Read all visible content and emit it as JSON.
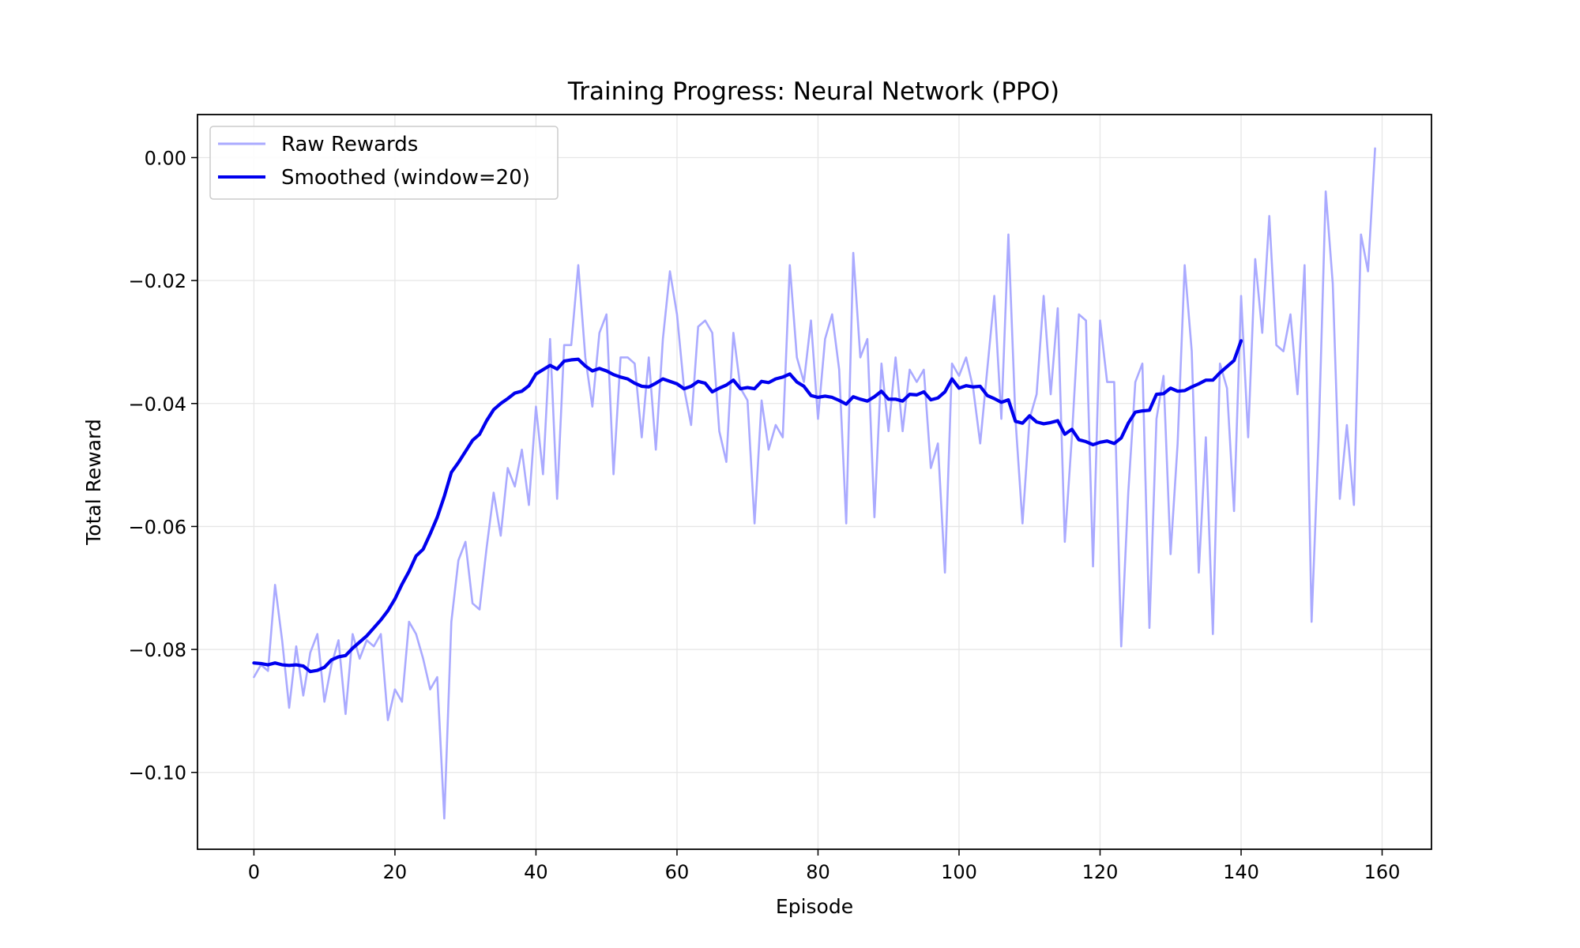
{
  "chart_data": {
    "type": "line",
    "title": "Training Progress: Neural Network (PPO)",
    "xlabel": "Episode",
    "ylabel": "Total Reward",
    "xlim": [
      -8,
      167
    ],
    "ylim": [
      -0.1125,
      0.007
    ],
    "xticks": [
      0,
      20,
      40,
      60,
      80,
      100,
      120,
      140,
      160
    ],
    "xtick_labels": [
      "0",
      "20",
      "40",
      "60",
      "80",
      "100",
      "120",
      "140",
      "160"
    ],
    "yticks": [
      0.0,
      -0.02,
      -0.04,
      -0.06,
      -0.08,
      -0.1
    ],
    "ytick_labels": [
      "0.00",
      "−0.02",
      "−0.04",
      "−0.06",
      "−0.08",
      "−0.10"
    ],
    "grid": true,
    "legend_position": "top-left",
    "series": [
      {
        "name": "Raw Rewards",
        "color": "#aaaaff",
        "x_start": 0,
        "values": [
          -0.0845,
          -0.0825,
          -0.0835,
          -0.0695,
          -0.0785,
          -0.0895,
          -0.0795,
          -0.0875,
          -0.0805,
          -0.0775,
          -0.0885,
          -0.0825,
          -0.0785,
          -0.0905,
          -0.0775,
          -0.0815,
          -0.0785,
          -0.0795,
          -0.0775,
          -0.0915,
          -0.0865,
          -0.0885,
          -0.0755,
          -0.0775,
          -0.0815,
          -0.0865,
          -0.0845,
          -0.1075,
          -0.0755,
          -0.0655,
          -0.0625,
          -0.0725,
          -0.0735,
          -0.0635,
          -0.0545,
          -0.0615,
          -0.0505,
          -0.0535,
          -0.0475,
          -0.0565,
          -0.0405,
          -0.0515,
          -0.0295,
          -0.0555,
          -0.0305,
          -0.0305,
          -0.0175,
          -0.0325,
          -0.0405,
          -0.0285,
          -0.0255,
          -0.0515,
          -0.0325,
          -0.0325,
          -0.0335,
          -0.0455,
          -0.0325,
          -0.0475,
          -0.0295,
          -0.0185,
          -0.0255,
          -0.0375,
          -0.0435,
          -0.0275,
          -0.0265,
          -0.0285,
          -0.0445,
          -0.0495,
          -0.0285,
          -0.0375,
          -0.0395,
          -0.0595,
          -0.0395,
          -0.0475,
          -0.0435,
          -0.0455,
          -0.0175,
          -0.0325,
          -0.0365,
          -0.0265,
          -0.0425,
          -0.0295,
          -0.0255,
          -0.0345,
          -0.0595,
          -0.0155,
          -0.0325,
          -0.0295,
          -0.0585,
          -0.0335,
          -0.0445,
          -0.0325,
          -0.0445,
          -0.0345,
          -0.0365,
          -0.0345,
          -0.0505,
          -0.0465,
          -0.0675,
          -0.0335,
          -0.0355,
          -0.0325,
          -0.0375,
          -0.0465,
          -0.0345,
          -0.0225,
          -0.0425,
          -0.0125,
          -0.0425,
          -0.0595,
          -0.0425,
          -0.0385,
          -0.0225,
          -0.0385,
          -0.0245,
          -0.0625,
          -0.0455,
          -0.0255,
          -0.0265,
          -0.0665,
          -0.0265,
          -0.0365,
          -0.0365,
          -0.0795,
          -0.0545,
          -0.0365,
          -0.0335,
          -0.0765,
          -0.0425,
          -0.0355,
          -0.0645,
          -0.0465,
          -0.0175,
          -0.0315,
          -0.0675,
          -0.0455,
          -0.0775,
          -0.0335,
          -0.0375,
          -0.0575,
          -0.0225,
          -0.0455,
          -0.0165,
          -0.0285,
          -0.0095,
          -0.0305,
          -0.0315,
          -0.0255,
          -0.0385,
          -0.0175,
          -0.0755,
          -0.0455,
          -0.0055,
          -0.0205,
          -0.0555,
          -0.0435,
          -0.0565,
          -0.0125,
          -0.0185,
          0.0015
        ]
      },
      {
        "name": "Smoothed (window=20)",
        "color": "#0000ee",
        "x_start": 0,
        "values": [
          -0.0822,
          -0.0823,
          -0.0825,
          -0.0822,
          -0.0825,
          -0.0826,
          -0.0825,
          -0.0827,
          -0.0836,
          -0.0834,
          -0.0829,
          -0.0817,
          -0.0812,
          -0.081,
          -0.0798,
          -0.0788,
          -0.0778,
          -0.0765,
          -0.0752,
          -0.0737,
          -0.0718,
          -0.0694,
          -0.0673,
          -0.0648,
          -0.0637,
          -0.0612,
          -0.0585,
          -0.0551,
          -0.0512,
          -0.0496,
          -0.0478,
          -0.046,
          -0.045,
          -0.0428,
          -0.041,
          -0.04,
          -0.0392,
          -0.0383,
          -0.038,
          -0.0371,
          -0.0352,
          -0.0345,
          -0.0338,
          -0.0344,
          -0.0331,
          -0.0329,
          -0.0328,
          -0.0339,
          -0.0347,
          -0.0343,
          -0.0347,
          -0.0353,
          -0.0357,
          -0.036,
          -0.0367,
          -0.0372,
          -0.0373,
          -0.0367,
          -0.036,
          -0.0364,
          -0.0368,
          -0.0376,
          -0.0372,
          -0.0364,
          -0.0367,
          -0.0381,
          -0.0375,
          -0.037,
          -0.0362,
          -0.0376,
          -0.0374,
          -0.0376,
          -0.0364,
          -0.0366,
          -0.036,
          -0.0357,
          -0.0352,
          -0.0365,
          -0.0372,
          -0.0387,
          -0.039,
          -0.0388,
          -0.039,
          -0.0395,
          -0.0401,
          -0.0389,
          -0.0393,
          -0.0396,
          -0.0389,
          -0.038,
          -0.0393,
          -0.0393,
          -0.0396,
          -0.0385,
          -0.0386,
          -0.0381,
          -0.0394,
          -0.0391,
          -0.0381,
          -0.036,
          -0.0375,
          -0.0371,
          -0.0373,
          -0.0372,
          -0.0387,
          -0.0392,
          -0.0398,
          -0.0394,
          -0.0429,
          -0.0432,
          -0.042,
          -0.043,
          -0.0433,
          -0.0431,
          -0.0428,
          -0.045,
          -0.0442,
          -0.0459,
          -0.0462,
          -0.0467,
          -0.0463,
          -0.0461,
          -0.0465,
          -0.0456,
          -0.0432,
          -0.0414,
          -0.0412,
          -0.0411,
          -0.0385,
          -0.0384,
          -0.0375,
          -0.038,
          -0.0379,
          -0.0373,
          -0.0368,
          -0.0362,
          -0.0362,
          -0.035,
          -0.034,
          -0.033,
          -0.0298
        ]
      }
    ]
  }
}
